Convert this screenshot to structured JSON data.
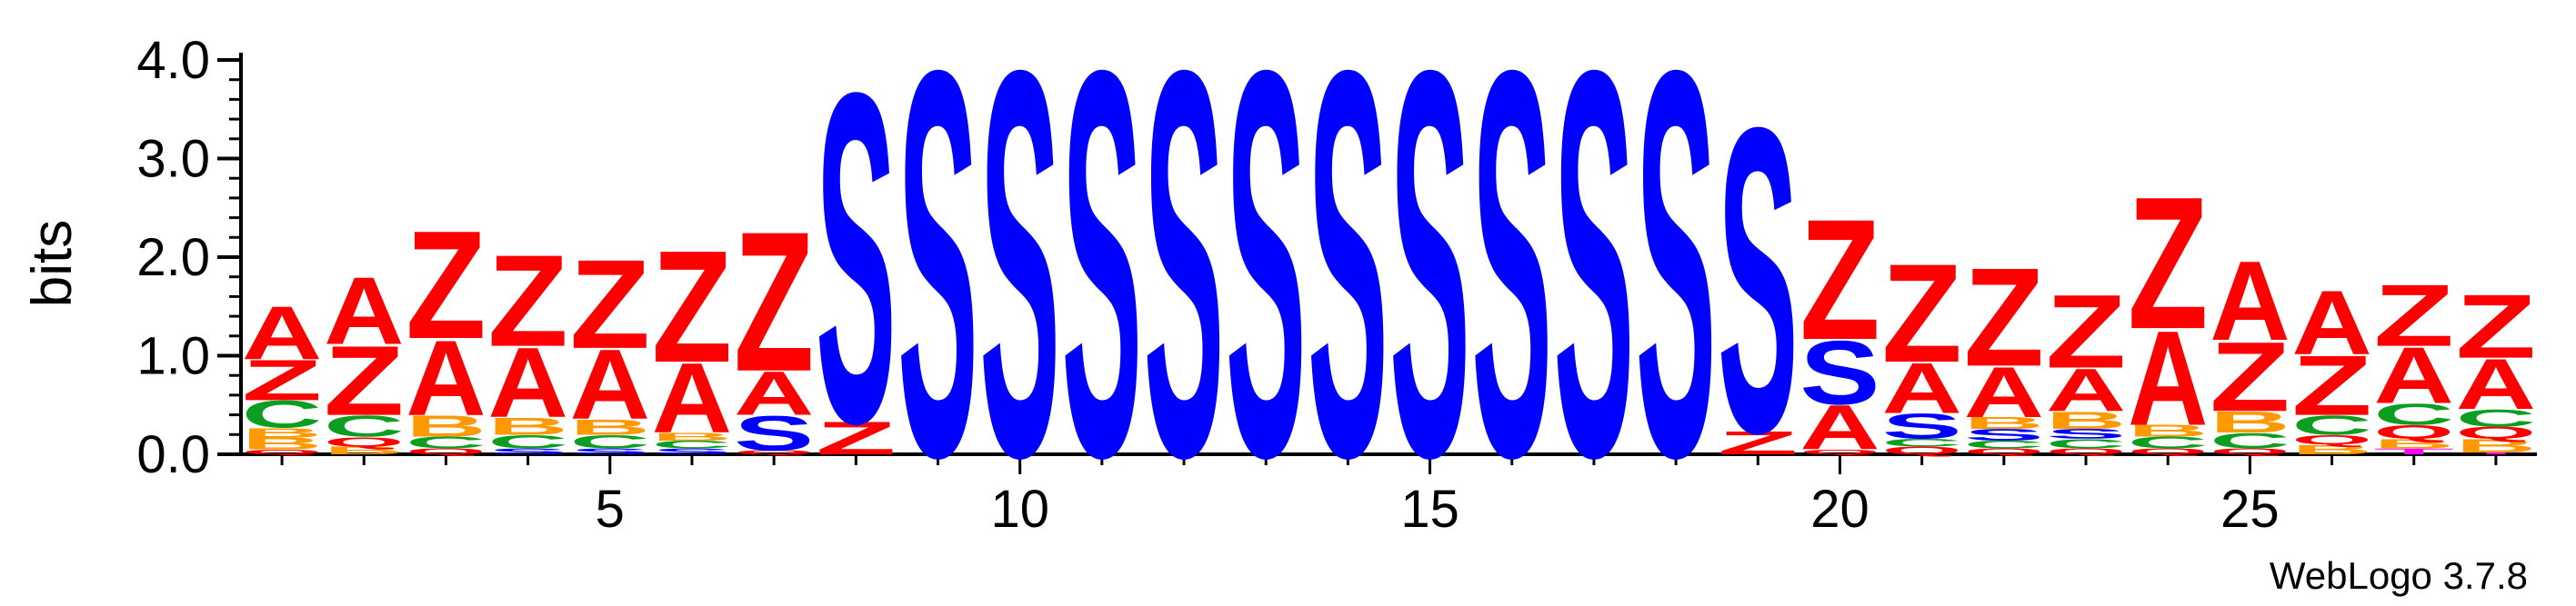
{
  "colors": {
    "A": "#ff0000",
    "Z": "#ff0000",
    "S": "#0000ff",
    "C": "#0c9e20",
    "B": "#ff9900",
    "Q": "#ff0000",
    "T": "#ff00ff"
  },
  "chart_data": {
    "type": "sequence-logo",
    "ylabel": "bits",
    "xlabel": "",
    "ylim": [
      0,
      4.0
    ],
    "yticks": [
      "0.0",
      "1.0",
      "2.0",
      "3.0",
      "4.0"
    ],
    "xticks": [
      5,
      10,
      15,
      20,
      25
    ],
    "credit": "WebLogo 3.7.8",
    "positions": [
      {
        "pos": 1,
        "stack": [
          [
            "Q",
            0.05
          ],
          [
            "B",
            0.12
          ],
          [
            "B",
            0.1
          ],
          [
            "C",
            0.28
          ],
          [
            "Z",
            0.42
          ],
          [
            "A",
            0.55
          ]
        ]
      },
      {
        "pos": 2,
        "stack": [
          [
            "B",
            0.08
          ],
          [
            "Q",
            0.1
          ],
          [
            "C",
            0.22
          ],
          [
            "Z",
            0.72
          ],
          [
            "A",
            0.7
          ]
        ]
      },
      {
        "pos": 3,
        "stack": [
          [
            "Q",
            0.06
          ],
          [
            "C",
            0.12
          ],
          [
            "B",
            0.22
          ],
          [
            "A",
            0.78
          ],
          [
            "Z",
            1.12
          ]
        ]
      },
      {
        "pos": 4,
        "stack": [
          [
            "S",
            0.06
          ],
          [
            "C",
            0.14
          ],
          [
            "B",
            0.18
          ],
          [
            "A",
            0.72
          ],
          [
            "Z",
            0.95
          ]
        ]
      },
      {
        "pos": 5,
        "stack": [
          [
            "S",
            0.06
          ],
          [
            "C",
            0.14
          ],
          [
            "B",
            0.16
          ],
          [
            "A",
            0.72
          ],
          [
            "Z",
            0.92
          ]
        ]
      },
      {
        "pos": 6,
        "stack": [
          [
            "S",
            0.06
          ],
          [
            "C",
            0.08
          ],
          [
            "B",
            0.08
          ],
          [
            "A",
            0.72
          ],
          [
            "Z",
            1.16
          ]
        ]
      },
      {
        "pos": 7,
        "stack": [
          [
            "Q",
            0.04
          ],
          [
            "S",
            0.36
          ],
          [
            "A",
            0.45
          ],
          [
            "Z",
            1.45
          ]
        ]
      },
      {
        "pos": 8,
        "stack": [
          [
            "Z",
            0.34
          ],
          [
            "S",
            3.42
          ]
        ]
      },
      {
        "pos": 9,
        "stack": [
          [
            "S",
            4.0
          ]
        ]
      },
      {
        "pos": 10,
        "stack": [
          [
            "S",
            4.0
          ]
        ]
      },
      {
        "pos": 11,
        "stack": [
          [
            "S",
            4.0
          ]
        ]
      },
      {
        "pos": 12,
        "stack": [
          [
            "S",
            4.0
          ]
        ]
      },
      {
        "pos": 13,
        "stack": [
          [
            "S",
            4.0
          ]
        ]
      },
      {
        "pos": 14,
        "stack": [
          [
            "S",
            4.0
          ]
        ]
      },
      {
        "pos": 15,
        "stack": [
          [
            "S",
            4.0
          ]
        ]
      },
      {
        "pos": 16,
        "stack": [
          [
            "S",
            4.0
          ]
        ]
      },
      {
        "pos": 17,
        "stack": [
          [
            "S",
            4.0
          ]
        ]
      },
      {
        "pos": 18,
        "stack": [
          [
            "S",
            4.0
          ]
        ]
      },
      {
        "pos": 19,
        "stack": [
          [
            "Z",
            0.24
          ],
          [
            "S",
            3.16
          ]
        ]
      },
      {
        "pos": 20,
        "stack": [
          [
            "Q",
            0.05
          ],
          [
            "A",
            0.46
          ],
          [
            "S",
            0.66
          ],
          [
            "Z",
            1.25
          ]
        ]
      },
      {
        "pos": 21,
        "stack": [
          [
            "Q",
            0.08
          ],
          [
            "C",
            0.08
          ],
          [
            "S",
            0.26
          ],
          [
            "A",
            0.52
          ],
          [
            "Z",
            1.02
          ]
        ]
      },
      {
        "pos": 22,
        "stack": [
          [
            "Q",
            0.06
          ],
          [
            "C",
            0.08
          ],
          [
            "S",
            0.12
          ],
          [
            "B",
            0.12
          ],
          [
            "A",
            0.52
          ],
          [
            "Z",
            1.02
          ]
        ]
      },
      {
        "pos": 23,
        "stack": [
          [
            "Q",
            0.06
          ],
          [
            "C",
            0.1
          ],
          [
            "S",
            0.1
          ],
          [
            "B",
            0.18
          ],
          [
            "A",
            0.44
          ],
          [
            "Z",
            0.76
          ]
        ]
      },
      {
        "pos": 24,
        "stack": [
          [
            "Q",
            0.06
          ],
          [
            "C",
            0.12
          ],
          [
            "B",
            0.12
          ],
          [
            "A",
            0.98
          ],
          [
            "Z",
            1.37
          ]
        ]
      },
      {
        "pos": 25,
        "stack": [
          [
            "Q",
            0.06
          ],
          [
            "C",
            0.16
          ],
          [
            "B",
            0.22
          ],
          [
            "Z",
            0.72
          ],
          [
            "A",
            0.82
          ]
        ]
      },
      {
        "pos": 26,
        "stack": [
          [
            "B",
            0.1
          ],
          [
            "Q",
            0.1
          ],
          [
            "C",
            0.2
          ],
          [
            "Z",
            0.62
          ],
          [
            "A",
            0.66
          ]
        ]
      },
      {
        "pos": 27,
        "stack": [
          [
            "T",
            0.06
          ],
          [
            "B",
            0.1
          ],
          [
            "Q",
            0.14
          ],
          [
            "C",
            0.22
          ],
          [
            "A",
            0.58
          ],
          [
            "Z",
            0.64
          ]
        ]
      },
      {
        "pos": 28,
        "stack": [
          [
            "T",
            0.02
          ],
          [
            "B",
            0.14
          ],
          [
            "Q",
            0.12
          ],
          [
            "C",
            0.18
          ],
          [
            "A",
            0.52
          ],
          [
            "Z",
            0.66
          ]
        ]
      }
    ]
  }
}
